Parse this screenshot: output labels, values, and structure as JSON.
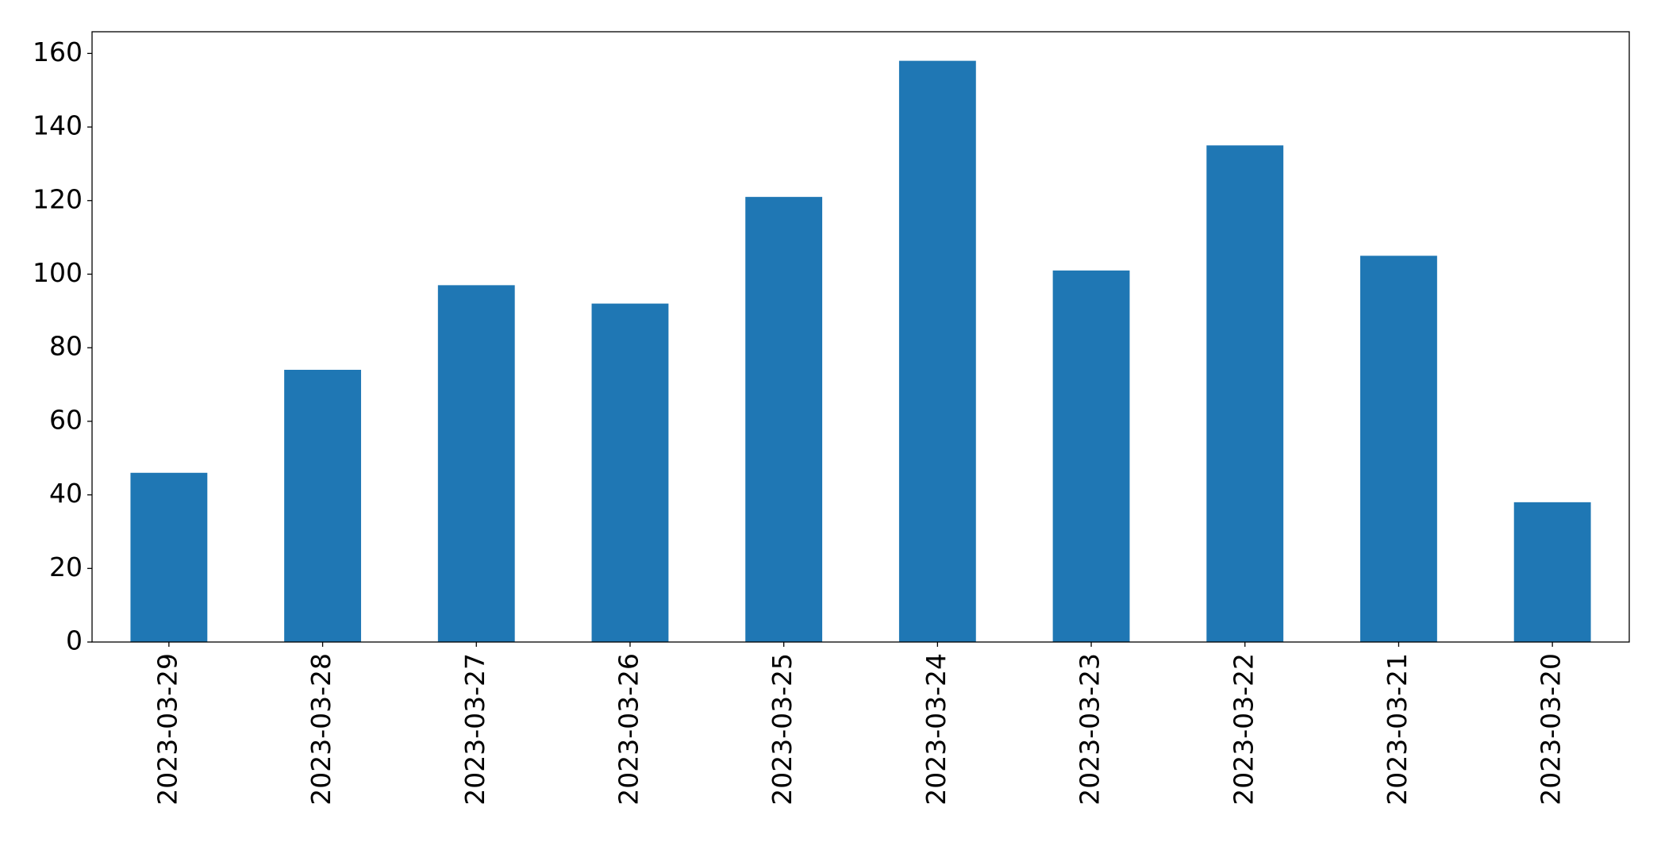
{
  "chart_data": {
    "type": "bar",
    "categories": [
      "2023-03-29",
      "2023-03-28",
      "2023-03-27",
      "2023-03-26",
      "2023-03-25",
      "2023-03-24",
      "2023-03-23",
      "2023-03-22",
      "2023-03-21",
      "2023-03-20"
    ],
    "values": [
      46,
      74,
      97,
      92,
      121,
      158,
      101,
      135,
      105,
      38
    ],
    "color": "#1f77b4",
    "ylim": [
      0,
      165.9
    ],
    "yticks": [
      0,
      20,
      40,
      60,
      80,
      100,
      120,
      140,
      160
    ],
    "grid": false
  }
}
